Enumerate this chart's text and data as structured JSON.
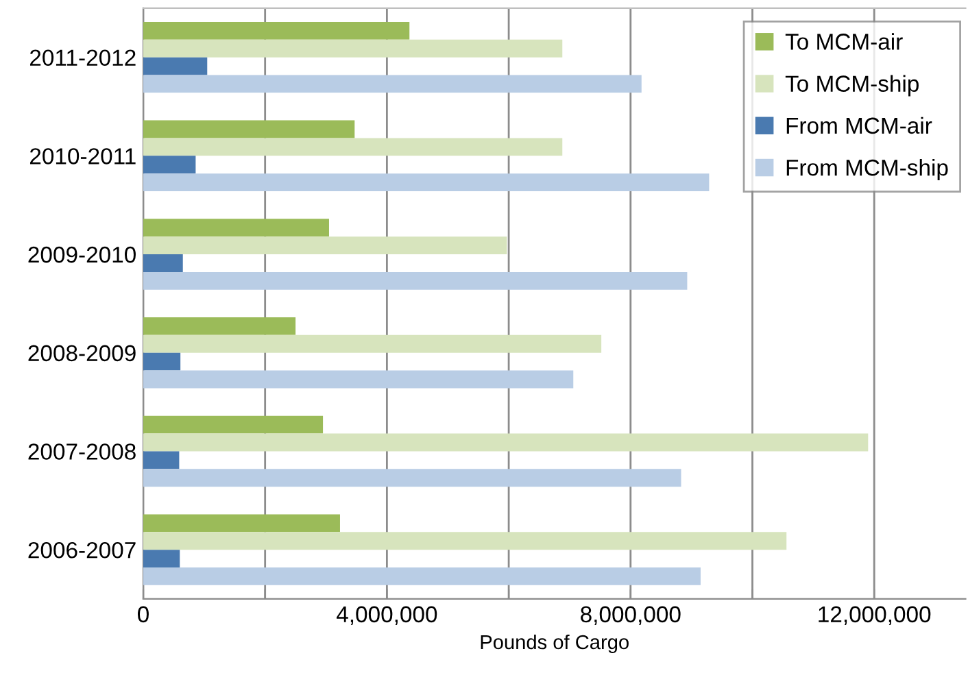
{
  "chart_data": {
    "type": "bar",
    "orientation": "horizontal",
    "xlabel": "Pounds of Cargo",
    "categories": [
      "2011-2012",
      "2010-2011",
      "2009-2010",
      "2008-2009",
      "2007-2008",
      "2006-2007"
    ],
    "series": [
      {
        "name": "To MCM-air",
        "color": "#9bbb59",
        "values": [
          4370000,
          3470000,
          3050000,
          2500000,
          2950000,
          3230000
        ]
      },
      {
        "name": "To MCM-ship",
        "color": "#d7e4bd",
        "values": [
          6880000,
          6880000,
          5970000,
          7520000,
          11900000,
          10560000
        ]
      },
      {
        "name": "From MCM-air",
        "color": "#4a7ab0",
        "values": [
          1050000,
          860000,
          650000,
          610000,
          590000,
          600000
        ]
      },
      {
        "name": "From MCM-ship",
        "color": "#b9cde5",
        "values": [
          8180000,
          9290000,
          8930000,
          7060000,
          8830000,
          9150000
        ]
      }
    ],
    "xlim": [
      0,
      13500000
    ],
    "xticks": [
      0,
      {
        "value": 2000000,
        "label": null
      },
      {
        "value": 4000000,
        "label": "4,000,000"
      },
      {
        "value": 6000000,
        "label": null
      },
      {
        "value": 8000000,
        "label": "8,000,000"
      },
      {
        "value": 10000000,
        "label": null
      },
      {
        "value": 12000000,
        "label": "12,000,000"
      }
    ],
    "grid": "x",
    "legend": "top right"
  }
}
